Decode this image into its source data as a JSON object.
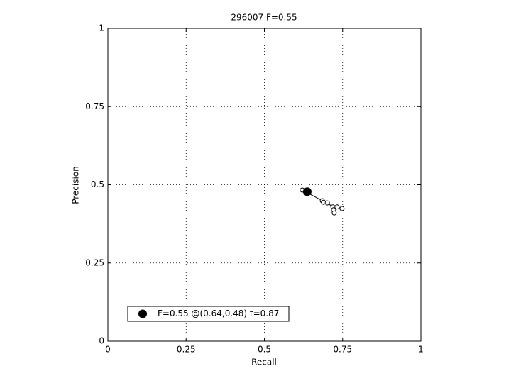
{
  "chart_data": {
    "type": "line",
    "title": "296007 F=0.55",
    "x_label": "Recall",
    "y_label": "Precision",
    "xlim": [
      0,
      1
    ],
    "ylim": [
      0,
      1
    ],
    "xticks": [
      0,
      0.25,
      0.5,
      0.75,
      1
    ],
    "yticks": [
      0,
      0.25,
      0.5,
      0.75,
      1
    ],
    "grid": true,
    "legend_position": "lower left",
    "series": [
      {
        "color": "#000000",
        "marker": "open-circle",
        "x": [
          0.621,
          0.685,
          0.689,
          0.701,
          0.719,
          0.721,
          0.723,
          0.732,
          0.748
        ],
        "values": [
          0.483,
          0.449,
          0.444,
          0.442,
          0.429,
          0.42,
          0.41,
          0.429,
          0.424
        ]
      },
      {
        "name": "F=0.55 @(0.64,0.48) t=0.87",
        "color": "#000000",
        "marker": "filled-circle",
        "x": [
          0.637
        ],
        "values": [
          0.478
        ]
      }
    ]
  }
}
